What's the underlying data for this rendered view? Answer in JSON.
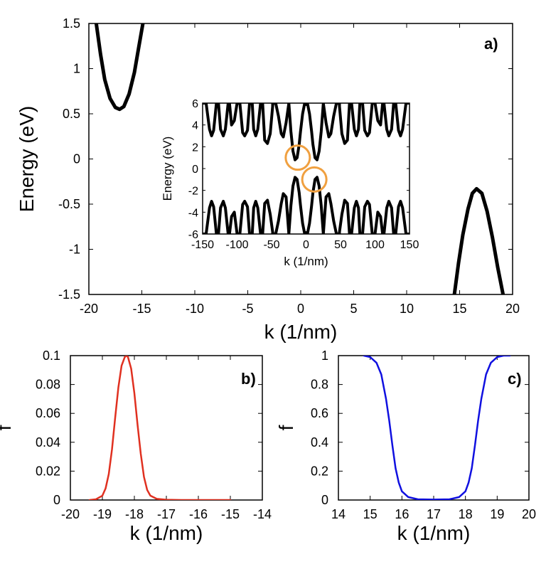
{
  "chart_data": [
    {
      "id": "a",
      "panel_label": "a)",
      "type": "line",
      "xlabel": "k (1/nm)",
      "ylabel": "Energy (eV)",
      "xlim": [
        -20,
        20
      ],
      "ylim": [
        -1.5,
        1.5
      ],
      "xticks": [
        "-20",
        "-15",
        "-10",
        "-5",
        "0",
        "5",
        "10",
        "15",
        "20"
      ],
      "yticks": [
        "1.5",
        "1",
        "0.5",
        "0",
        "-0.5",
        "-1",
        "-1.5"
      ],
      "colors": {
        "curve": "#000000"
      },
      "series": [
        {
          "x": [
            -19.3,
            -18.9,
            -18.5,
            -18.0,
            -17.5,
            -17.1,
            -16.7,
            -16.2,
            -15.7,
            -15.3,
            -14.9
          ],
          "y": [
            1.5,
            1.16,
            0.88,
            0.67,
            0.57,
            0.55,
            0.58,
            0.72,
            0.96,
            1.23,
            1.5
          ]
        },
        {
          "x": [
            14.5,
            14.9,
            15.3,
            15.8,
            16.2,
            16.6,
            17.1,
            17.6,
            18.1,
            18.6,
            19.1
          ],
          "y": [
            -1.5,
            -1.15,
            -0.84,
            -0.55,
            -0.38,
            -0.33,
            -0.38,
            -0.58,
            -0.87,
            -1.2,
            -1.5
          ]
        }
      ],
      "inset": {
        "type": "line",
        "xlabel": "k (1/nm)",
        "ylabel": "Energy (eV)",
        "xlim": [
          -150,
          150
        ],
        "ylim": [
          -6,
          6
        ],
        "xticks": [
          "-150",
          "-100",
          "-50",
          "0",
          "50",
          "100",
          "150"
        ],
        "yticks": [
          "6",
          "4",
          "2",
          "0",
          "-2",
          "-4",
          "-6"
        ],
        "highlight_color": "#f0a040",
        "highlights": [
          {
            "x": -12,
            "y": 1
          },
          {
            "x": 12,
            "y": -1
          }
        ],
        "bands": [
          {
            "x": [
              -150,
              -145,
              -140,
              -137,
              -134,
              -130,
              -127,
              -124,
              -120,
              -117,
              -113,
              -111,
              -108,
              -104,
              -100,
              -96,
              -92,
              -89,
              -85,
              -82,
              -78,
              -76,
              -73,
              -70,
              -66,
              -63,
              -60,
              -56,
              -52,
              -48,
              -44,
              -40,
              -36,
              -33,
              -29,
              -25,
              -22,
              -19,
              -16,
              -13,
              -10,
              -8,
              -5,
              -2
            ],
            "y": [
              6,
              6,
              3.6,
              3.0,
              3.5,
              6,
              6,
              3.6,
              3.0,
              3.6,
              6,
              6,
              4.0,
              4.4,
              6,
              6,
              3.3,
              3.0,
              3.5,
              6,
              6,
              3.6,
              3.0,
              3.6,
              6,
              6,
              2.6,
              2.3,
              3.2,
              6,
              6,
              4.8,
              3.2,
              2.9,
              4.2,
              6,
              3.4,
              1.6,
              0.8,
              1.0,
              2.2,
              3.4,
              5.0,
              6
            ]
          },
          {
            "x": [
              2,
              5,
              8,
              10,
              13,
              16,
              19,
              22,
              25,
              29,
              33,
              36,
              40,
              44,
              48,
              52,
              56,
              60,
              63,
              66,
              70,
              73,
              76,
              78,
              82,
              85,
              89,
              92,
              96,
              100,
              104,
              108,
              111,
              113,
              117,
              120,
              124,
              127,
              130,
              134,
              137,
              140,
              145,
              150
            ],
            "y": [
              6,
              5.0,
              3.4,
              2.2,
              1.0,
              0.8,
              1.6,
              3.4,
              6,
              4.2,
              2.9,
              3.2,
              4.8,
              6,
              6,
              3.2,
              2.3,
              2.6,
              6,
              6,
              3.6,
              3.0,
              3.6,
              6,
              6,
              3.5,
              3.0,
              3.3,
              6,
              6,
              4.4,
              4.0,
              6,
              6,
              3.6,
              3.0,
              3.6,
              6,
              6,
              3.5,
              3.0,
              3.6,
              6,
              6
            ]
          },
          {
            "x": [
              -150,
              -145,
              -140,
              -137,
              -134,
              -130,
              -127,
              -124,
              -120,
              -117,
              -113,
              -111,
              -108,
              -104,
              -100,
              -96,
              -92,
              -89,
              -85,
              -82,
              -78,
              -76,
              -73,
              -70,
              -66,
              -63,
              -60,
              -56,
              -52,
              -48,
              -44,
              -40,
              -36,
              -33,
              -29,
              -25,
              -22,
              -19,
              -16,
              -13,
              -10,
              -8,
              -5,
              -2
            ],
            "y": [
              -6,
              -6,
              -3.6,
              -3.0,
              -3.5,
              -6,
              -6,
              -3.6,
              -3.0,
              -3.6,
              -6,
              -6,
              -4.4,
              -4.0,
              -6,
              -6,
              -3.3,
              -3.0,
              -3.5,
              -6,
              -6,
              -3.6,
              -3.0,
              -3.6,
              -6,
              -6,
              -3.2,
              -2.9,
              -4.2,
              -6,
              -6,
              -4.8,
              -3.2,
              -2.3,
              -2.6,
              -6,
              -3.4,
              -1.6,
              -0.8,
              -1.0,
              -2.2,
              -3.4,
              -5.0,
              -6
            ]
          },
          {
            "x": [
              2,
              5,
              8,
              10,
              13,
              16,
              19,
              22,
              25,
              29,
              33,
              36,
              40,
              44,
              48,
              52,
              56,
              60,
              63,
              66,
              70,
              73,
              76,
              78,
              82,
              85,
              89,
              92,
              96,
              100,
              104,
              108,
              111,
              113,
              117,
              120,
              124,
              127,
              130,
              134,
              137,
              140,
              145,
              150
            ],
            "y": [
              -6,
              -5.0,
              -3.4,
              -2.2,
              -1.0,
              -0.8,
              -1.6,
              -3.4,
              -6,
              -2.6,
              -2.3,
              -3.2,
              -4.8,
              -6,
              -6,
              -4.2,
              -2.9,
              -3.2,
              -6,
              -6,
              -3.6,
              -3.0,
              -3.6,
              -6,
              -6,
              -3.5,
              -3.0,
              -3.3,
              -6,
              -6,
              -4.0,
              -4.4,
              -6,
              -6,
              -3.6,
              -3.0,
              -3.6,
              -6,
              -6,
              -3.5,
              -3.0,
              -3.6,
              -6,
              -6
            ]
          }
        ]
      }
    },
    {
      "id": "b",
      "panel_label": "b)",
      "type": "line",
      "xlabel": "k (1/nm)",
      "ylabel": "f",
      "xlim": [
        -20,
        -14
      ],
      "ylim": [
        0,
        0.1
      ],
      "xticks": [
        "-20",
        "-19",
        "-18",
        "-17",
        "-16",
        "-15",
        "-14"
      ],
      "yticks": [
        "0.1",
        "0.08",
        "0.06",
        "0.04",
        "0.02",
        "0"
      ],
      "colors": {
        "curve": "#e03020"
      },
      "series": [
        {
          "x": [
            -19.4,
            -19.2,
            -19.0,
            -18.9,
            -18.8,
            -18.7,
            -18.6,
            -18.5,
            -18.4,
            -18.3,
            -18.25,
            -18.2,
            -18.1,
            -18.0,
            -17.9,
            -17.8,
            -17.7,
            -17.6,
            -17.5,
            -17.3,
            -17.0,
            -16.5,
            -16.0,
            -15.5,
            -15.0
          ],
          "y": [
            0,
            0.0005,
            0.003,
            0.008,
            0.018,
            0.035,
            0.057,
            0.078,
            0.093,
            0.099,
            0.1,
            0.099,
            0.091,
            0.074,
            0.052,
            0.032,
            0.016,
            0.007,
            0.003,
            0.0008,
            0.0002,
            0,
            0,
            0,
            0
          ]
        }
      ]
    },
    {
      "id": "c",
      "panel_label": "c)",
      "type": "line",
      "xlabel": "k (1/nm)",
      "ylabel": "f",
      "xlim": [
        14,
        20
      ],
      "ylim": [
        0,
        1
      ],
      "xticks": [
        "14",
        "15",
        "16",
        "17",
        "18",
        "19",
        "20"
      ],
      "yticks": [
        "1",
        "0.8",
        "0.6",
        "0.4",
        "0.2",
        "0"
      ],
      "colors": {
        "curve": "#1010e0"
      },
      "series": [
        {
          "x": [
            14.8,
            15.0,
            15.2,
            15.35,
            15.5,
            15.6,
            15.7,
            15.8,
            15.9,
            16.0,
            16.2,
            16.5,
            17.0,
            17.5,
            17.8,
            18.0,
            18.1,
            18.2,
            18.3,
            18.4,
            18.5,
            18.65,
            18.8,
            19.0,
            19.2,
            19.4
          ],
          "y": [
            1.0,
            0.99,
            0.95,
            0.87,
            0.7,
            0.55,
            0.38,
            0.22,
            0.12,
            0.06,
            0.02,
            0.005,
            0.003,
            0.005,
            0.02,
            0.06,
            0.12,
            0.22,
            0.38,
            0.55,
            0.7,
            0.87,
            0.95,
            0.99,
            1.0,
            1.0
          ]
        }
      ]
    }
  ]
}
